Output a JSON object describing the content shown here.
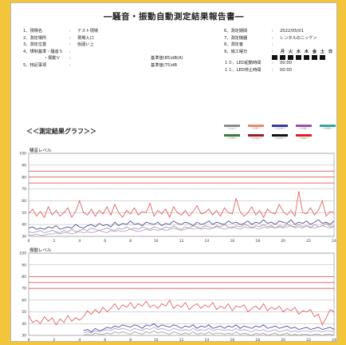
{
  "title": "―騒音・振動自動測定結果報告書―",
  "left_info": [
    {
      "label": "1、現場名",
      "value": "テスト現場"
    },
    {
      "label": "2、測定場所",
      "value": "現場入口"
    },
    {
      "label": "3、測定位置",
      "value": "仮囲い上"
    },
    {
      "label": "4、規制基準・騒音Ｓ",
      "value": ""
    },
    {
      "label": "　　　　　・振動Ｖ",
      "value": ""
    },
    {
      "label": "5、特記事項",
      "value": ""
    }
  ],
  "standards": [
    "基準値(85)dB(A)",
    "基準値(75)dB"
  ],
  "right_info": [
    {
      "label": "6、測定期間",
      "value": "2022/05/01"
    },
    {
      "label": "7、測定機器",
      "value": "レンタルのニッケン"
    },
    {
      "label": "8、測定者",
      "value": ""
    },
    {
      "label": "9、施工曜日",
      "value": ""
    },
    {
      "label": "１０、LED起動時間",
      "value": "00:00"
    },
    {
      "label": "１１、LED停止時間",
      "value": "00:00"
    }
  ],
  "weekdays": [
    "月",
    "火",
    "水",
    "木",
    "金",
    "土",
    "日"
  ],
  "graph_heading": "＜＜測定結果グラフ＞＞",
  "legend": [
    {
      "color": "#8a8a8a",
      "text": "ーLxー"
    },
    {
      "color": "#e8896a",
      "text": "ーL5ー"
    },
    {
      "color": "#3b3b8f",
      "text": "ーL10ー"
    },
    {
      "color": "#9c4fb0",
      "text": "ーL50ー"
    },
    {
      "color": "#3aa3a3",
      "text": "ーL90ー"
    },
    {
      "color": "#3d7a3d",
      "text": "ーL95ー"
    },
    {
      "color": "#9a2020",
      "text": "ーLmaxー"
    },
    {
      "color": "#111111",
      "text": "ーLminー"
    },
    {
      "color": "#e01e1e",
      "text": "ーLeqー"
    }
  ],
  "chart_data": [
    {
      "type": "line",
      "title": "騒音レベル",
      "x_ticks": [
        0,
        2,
        4,
        6,
        8,
        10,
        12,
        14,
        16,
        18,
        20,
        22,
        24
      ],
      "y_ticks": [
        30,
        40,
        50,
        60,
        70,
        80,
        90,
        100
      ],
      "xlim": [
        0,
        24
      ],
      "ylim": [
        30,
        100
      ],
      "reference_lines": [
        85,
        80,
        75
      ],
      "series": [
        {
          "color": "#e05252",
          "values": [
            49,
            53,
            47,
            51,
            46,
            55,
            48,
            52,
            47,
            50,
            54,
            46,
            51,
            60,
            50,
            48,
            53,
            47,
            52,
            49,
            55,
            48,
            57,
            50,
            46,
            52,
            49,
            54,
            48,
            51,
            50,
            58,
            47,
            52,
            49,
            53,
            46,
            55,
            50,
            48,
            52,
            47,
            51,
            56,
            49,
            50,
            53,
            48,
            52,
            47,
            54,
            50,
            49,
            62,
            51,
            47,
            50,
            55,
            48,
            52,
            46,
            53,
            50,
            49,
            57,
            51,
            48,
            52,
            47,
            68,
            50,
            49,
            54,
            48,
            52,
            60,
            47,
            51,
            50
          ]
        },
        {
          "color": "#3d3d8a",
          "values": [
            37,
            38,
            36,
            37,
            36,
            38,
            37,
            39,
            36,
            37,
            38,
            37,
            40,
            38,
            37,
            39,
            40,
            38,
            41,
            39,
            40,
            38,
            42,
            39,
            41,
            40,
            43,
            40,
            41,
            39,
            42,
            41,
            40,
            42,
            39,
            41,
            40,
            43,
            41,
            40,
            42,
            41,
            39,
            42,
            40,
            41,
            43,
            40,
            42,
            41,
            40,
            43,
            41,
            42,
            40,
            41,
            43,
            40,
            42,
            41,
            44,
            41,
            42,
            40,
            43,
            42,
            41,
            44,
            40,
            42,
            41,
            43,
            40,
            42,
            44,
            41,
            42,
            40,
            43
          ]
        },
        {
          "color": "#9a9a9a",
          "values": [
            34,
            33,
            34,
            35,
            33,
            34,
            35,
            34,
            33,
            35,
            34,
            36,
            34,
            35,
            36,
            35,
            37,
            36,
            35,
            36,
            37,
            36,
            35,
            37,
            36,
            38,
            36,
            37,
            36,
            38,
            37,
            36,
            38,
            37,
            36,
            38,
            37,
            39,
            37,
            36,
            38,
            37,
            39,
            38,
            37,
            39,
            38,
            37,
            39,
            38,
            40,
            38,
            37,
            39,
            38,
            40,
            39,
            37,
            39,
            38,
            40,
            38,
            39,
            37,
            39,
            38,
            40,
            39,
            38,
            40,
            38,
            39,
            37,
            40,
            38,
            39,
            41,
            38,
            39
          ]
        },
        {
          "color": "#b98fcf",
          "values": [
            31,
            31,
            32,
            31,
            31,
            32,
            32,
            33,
            32,
            33,
            33,
            32,
            33,
            34,
            33,
            34,
            33,
            34,
            35,
            34,
            33,
            35,
            34,
            35,
            34,
            35,
            36,
            35,
            34,
            35,
            36,
            35,
            36,
            35,
            36,
            35,
            36,
            37,
            36,
            35,
            36,
            37,
            36,
            37,
            36,
            37,
            36,
            37,
            38,
            37,
            36,
            37,
            38,
            37,
            36,
            38,
            37,
            38,
            37,
            36,
            38,
            37,
            38,
            37,
            38,
            37,
            38,
            39,
            37,
            38,
            37,
            39,
            38,
            37,
            38,
            39,
            38,
            37,
            38
          ]
        }
      ]
    },
    {
      "type": "line",
      "title": "振動レベル",
      "x_ticks": [
        0,
        2,
        4,
        6,
        8,
        10,
        12,
        14,
        16,
        18,
        20,
        22,
        24
      ],
      "y_ticks": [
        30,
        40,
        50,
        60,
        70,
        80,
        90,
        100
      ],
      "xlim": [
        0,
        24
      ],
      "ylim": [
        30,
        100
      ],
      "reference_lines": [
        80,
        75,
        70
      ],
      "series": [
        {
          "color": "#e05252",
          "values": [
            47,
            41,
            43,
            40,
            46,
            42,
            45,
            39,
            44,
            41,
            47,
            42,
            45,
            43,
            46,
            51,
            48,
            52,
            49,
            54,
            50,
            53,
            57,
            52,
            56,
            54,
            58,
            53,
            57,
            55,
            59,
            54,
            56,
            53,
            57,
            55,
            60,
            53,
            56,
            54,
            58,
            52,
            55,
            57,
            53,
            56,
            54,
            58,
            52,
            55,
            53,
            57,
            51,
            55,
            54,
            56,
            50,
            53,
            55,
            52,
            57,
            51,
            54,
            52,
            55,
            50,
            53,
            51,
            54,
            48,
            51,
            50,
            52,
            46,
            48,
            39,
            45,
            52,
            50
          ]
        },
        {
          "color": "#3d3d8a",
          "values": [
            null,
            null,
            null,
            null,
            null,
            null,
            null,
            null,
            null,
            null,
            null,
            null,
            null,
            null,
            34,
            35,
            33,
            36,
            34,
            35,
            37,
            36,
            38,
            37,
            39,
            38,
            37,
            39,
            38,
            36,
            39,
            38,
            40,
            37,
            39,
            38,
            37,
            39,
            38,
            36,
            38,
            37,
            39,
            36,
            38,
            37,
            39,
            36,
            37,
            38,
            36,
            38,
            37,
            39,
            36,
            38,
            37,
            36,
            38,
            37,
            39,
            36,
            37,
            38,
            36,
            37,
            38,
            36,
            37,
            35,
            36,
            37,
            35,
            36,
            37,
            35,
            36,
            37,
            35
          ]
        },
        {
          "color": "#b98fcf",
          "values": [
            null,
            null,
            null,
            null,
            null,
            null,
            null,
            null,
            null,
            null,
            null,
            null,
            null,
            null,
            32,
            33,
            32,
            34,
            33,
            34,
            35,
            34,
            36,
            35,
            36,
            35,
            34,
            36,
            35,
            34,
            36,
            35,
            37,
            35,
            36,
            35,
            34,
            36,
            35,
            34,
            35,
            34,
            36,
            34,
            35,
            34,
            36,
            34,
            35,
            35,
            34,
            35,
            34,
            36,
            34,
            35,
            34,
            33,
            35,
            34,
            35,
            33,
            34,
            35,
            33,
            34,
            35,
            33,
            34,
            33,
            34,
            34,
            33,
            34,
            34,
            33,
            34,
            34,
            33
          ]
        },
        {
          "color": "#9a9a9a",
          "values": [
            null,
            null,
            null,
            null,
            null,
            null,
            null,
            null,
            null,
            null,
            null,
            null,
            null,
            null,
            30,
            31,
            30,
            32,
            31,
            31,
            32,
            31,
            33,
            32,
            33,
            32,
            31,
            33,
            32,
            31,
            33,
            32,
            34,
            32,
            33,
            32,
            31,
            33,
            32,
            31,
            32,
            31,
            33,
            31,
            32,
            31,
            33,
            31,
            32,
            32,
            31,
            32,
            31,
            33,
            31,
            32,
            31,
            30,
            32,
            31,
            32,
            30,
            31,
            32,
            30,
            31,
            32,
            30,
            31,
            30,
            31,
            31,
            30,
            31,
            31,
            30,
            31,
            31,
            30
          ]
        }
      ]
    }
  ]
}
